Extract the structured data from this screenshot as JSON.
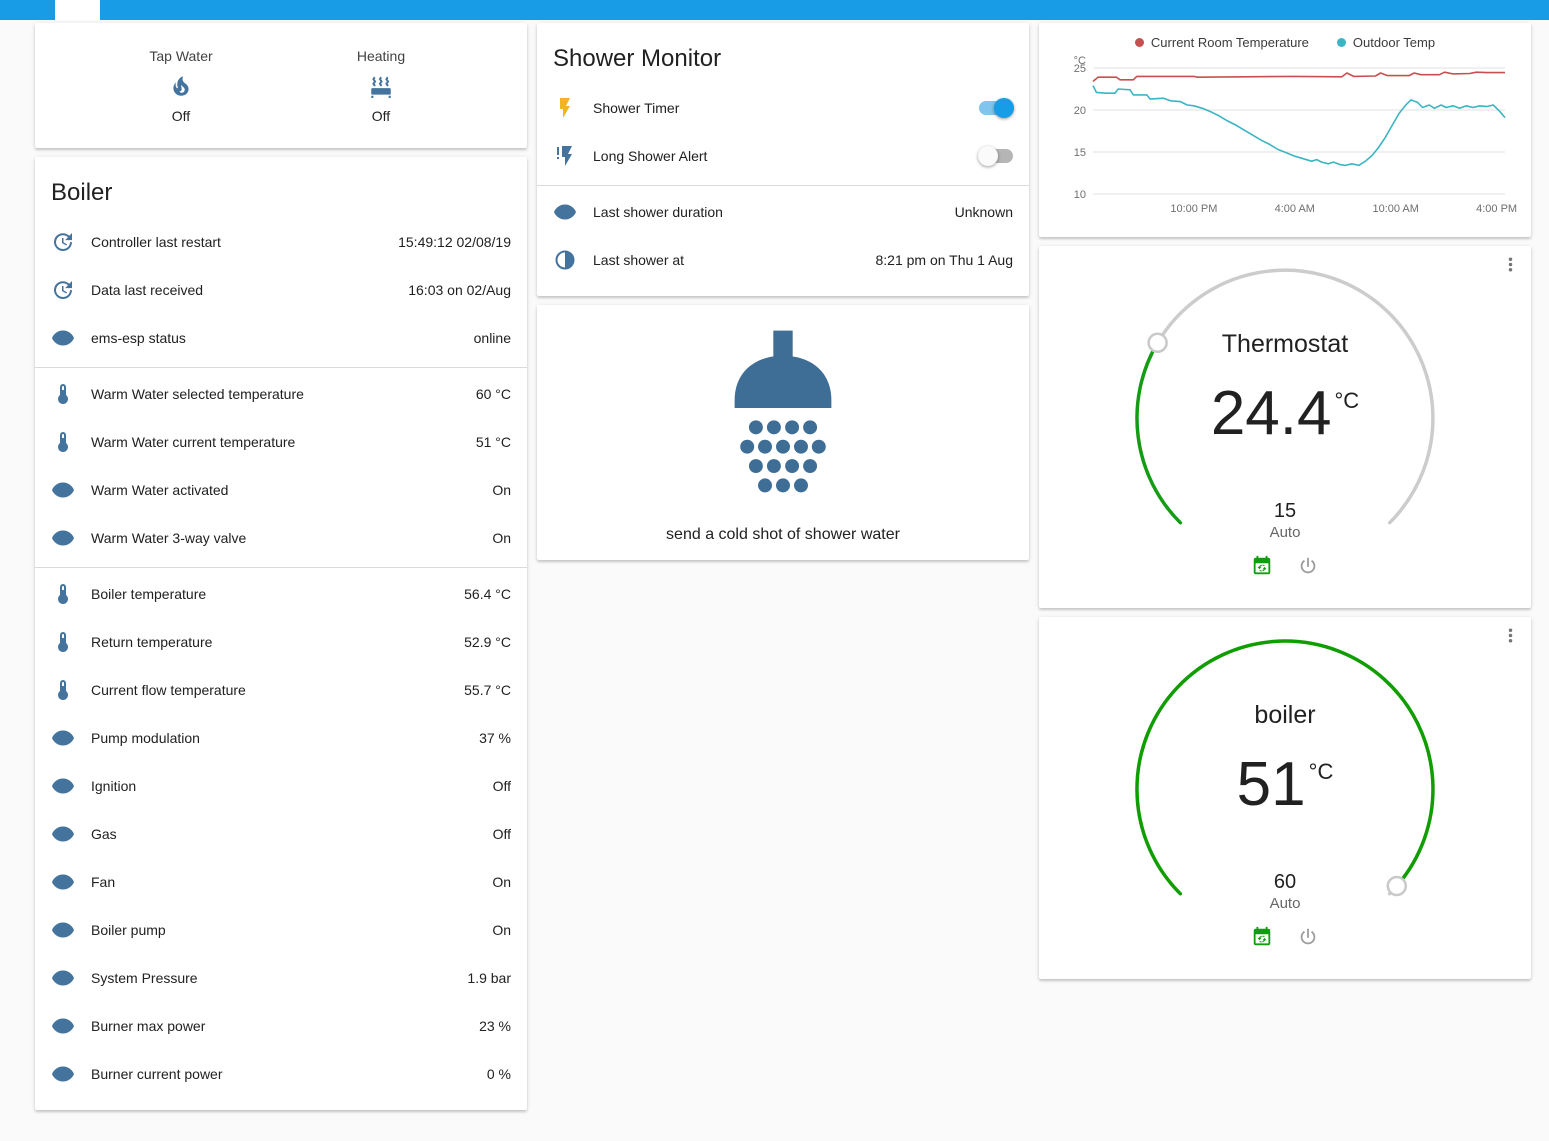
{
  "header": {
    "color": "#189ce6"
  },
  "glance_card": {
    "items": [
      {
        "name": "Tap Water",
        "icon": "fire-icon",
        "state": "Off"
      },
      {
        "name": "Heating",
        "icon": "radiator-icon",
        "state": "Off"
      }
    ]
  },
  "boiler_card": {
    "title": "Boiler",
    "rows": [
      {
        "icon": "clock-restart-icon",
        "name": "Controller last restart",
        "value": "15:49:12 02/08/19"
      },
      {
        "icon": "clock-restart-icon",
        "name": "Data last received",
        "value": "16:03 on 02/Aug"
      },
      {
        "icon": "eye-icon",
        "name": "ems-esp status",
        "value": "online"
      },
      {
        "icon": "thermometer-icon",
        "name": "Warm Water selected temperature",
        "value": "60 °C",
        "divider": true
      },
      {
        "icon": "thermometer-icon",
        "name": "Warm Water current temperature",
        "value": "51 °C"
      },
      {
        "icon": "eye-icon",
        "name": "Warm Water activated",
        "value": "On"
      },
      {
        "icon": "eye-icon",
        "name": "Warm Water 3-way valve",
        "value": "On"
      },
      {
        "icon": "thermometer-icon",
        "name": "Boiler temperature",
        "value": "56.4 °C",
        "divider": true
      },
      {
        "icon": "thermometer-icon",
        "name": "Return temperature",
        "value": "52.9 °C"
      },
      {
        "icon": "thermometer-icon",
        "name": "Current flow temperature",
        "value": "55.7 °C"
      },
      {
        "icon": "eye-icon",
        "name": "Pump modulation",
        "value": "37 %"
      },
      {
        "icon": "eye-icon",
        "name": "Ignition",
        "value": "Off"
      },
      {
        "icon": "eye-icon",
        "name": "Gas",
        "value": "Off"
      },
      {
        "icon": "eye-icon",
        "name": "Fan",
        "value": "On"
      },
      {
        "icon": "eye-icon",
        "name": "Boiler pump",
        "value": "On"
      },
      {
        "icon": "eye-icon",
        "name": "System Pressure",
        "value": "1.9 bar"
      },
      {
        "icon": "eye-icon",
        "name": "Burner max power",
        "value": "23 %"
      },
      {
        "icon": "eye-icon",
        "name": "Burner current power",
        "value": "0 %"
      }
    ]
  },
  "shower_card": {
    "title": "Shower Monitor",
    "rows": [
      {
        "icon": "flash-icon",
        "icon_color": "#f2b32b",
        "name": "Shower Timer",
        "toggle": true
      },
      {
        "icon": "flash-alert-icon",
        "name": "Long Shower Alert",
        "toggle": false
      },
      {
        "icon": "eye-icon",
        "name": "Last shower duration",
        "value": "Unknown",
        "divider": true
      },
      {
        "icon": "moon-icon",
        "name": "Last shower at",
        "value": "8:21 pm on Thu 1 Aug"
      }
    ]
  },
  "picture_card": {
    "caption": "send a cold shot of shower water"
  },
  "chart_data": {
    "type": "line",
    "unit": "°C",
    "ylim": [
      10,
      25
    ],
    "yticks": [
      25,
      20,
      15,
      10
    ],
    "xlim": [
      0,
      24.5
    ],
    "xticks": [
      {
        "x": 6,
        "label": "10:00 PM"
      },
      {
        "x": 12,
        "label": "4:00 AM"
      },
      {
        "x": 18,
        "label": "10:00 AM"
      },
      {
        "x": 24,
        "label": "4:00 PM"
      }
    ],
    "legend_position": "top",
    "grid": true,
    "series": [
      {
        "name": "Current Room Temperature",
        "color": "#c65050",
        "points": [
          [
            0,
            23.4
          ],
          [
            0.3,
            23.9
          ],
          [
            1.4,
            23.9
          ],
          [
            1.6,
            23.6
          ],
          [
            2.4,
            23.6
          ],
          [
            2.6,
            24.0
          ],
          [
            6,
            24.0
          ],
          [
            6.2,
            23.9
          ],
          [
            9,
            23.95
          ],
          [
            12,
            24.0
          ],
          [
            14.8,
            23.95
          ],
          [
            15.1,
            24.4
          ],
          [
            15.5,
            24.0
          ],
          [
            16.8,
            24.05
          ],
          [
            17.1,
            24.4
          ],
          [
            17.5,
            24.1
          ],
          [
            18.8,
            24.1
          ],
          [
            19.1,
            24.4
          ],
          [
            19.5,
            24.2
          ],
          [
            20.6,
            24.2
          ],
          [
            20.9,
            24.5
          ],
          [
            21.4,
            24.3
          ],
          [
            22.4,
            24.35
          ],
          [
            22.8,
            24.5
          ],
          [
            23.4,
            24.45
          ],
          [
            24.5,
            24.45
          ]
        ]
      },
      {
        "name": "Outdoor Temp",
        "color": "#3bb5c4",
        "points": [
          [
            0,
            22.9
          ],
          [
            0.2,
            22.1
          ],
          [
            0.8,
            22.0
          ],
          [
            1.3,
            22.0
          ],
          [
            1.5,
            22.5
          ],
          [
            2.2,
            22.4
          ],
          [
            2.4,
            21.8
          ],
          [
            3.2,
            21.8
          ],
          [
            3.4,
            21.3
          ],
          [
            4.2,
            21.4
          ],
          [
            4.6,
            21.1
          ],
          [
            5.2,
            21.0
          ],
          [
            5.6,
            20.6
          ],
          [
            6.0,
            20.5
          ],
          [
            6.5,
            20.2
          ],
          [
            7.0,
            19.8
          ],
          [
            7.5,
            19.3
          ],
          [
            8.0,
            18.7
          ],
          [
            8.5,
            18.2
          ],
          [
            9.0,
            17.6
          ],
          [
            9.5,
            17.0
          ],
          [
            10.0,
            16.4
          ],
          [
            10.5,
            15.9
          ],
          [
            11.0,
            15.3
          ],
          [
            11.5,
            14.9
          ],
          [
            12.0,
            14.5
          ],
          [
            12.5,
            14.2
          ],
          [
            13.0,
            13.9
          ],
          [
            13.3,
            14.1
          ],
          [
            13.6,
            13.8
          ],
          [
            14.0,
            13.6
          ],
          [
            14.3,
            13.8
          ],
          [
            14.7,
            13.5
          ],
          [
            15.0,
            13.4
          ],
          [
            15.4,
            13.6
          ],
          [
            15.8,
            13.4
          ],
          [
            16.2,
            13.9
          ],
          [
            16.6,
            14.6
          ],
          [
            17.0,
            15.6
          ],
          [
            17.4,
            16.8
          ],
          [
            17.8,
            18.2
          ],
          [
            18.2,
            19.6
          ],
          [
            18.6,
            20.6
          ],
          [
            18.9,
            21.2
          ],
          [
            19.3,
            20.9
          ],
          [
            19.6,
            20.3
          ],
          [
            20.0,
            20.6
          ],
          [
            20.3,
            20.2
          ],
          [
            20.7,
            20.6
          ],
          [
            21.0,
            20.3
          ],
          [
            21.4,
            20.5
          ],
          [
            21.8,
            20.2
          ],
          [
            22.2,
            20.5
          ],
          [
            22.6,
            20.3
          ],
          [
            23.0,
            20.5
          ],
          [
            23.4,
            20.4
          ],
          [
            23.8,
            20.6
          ],
          [
            24.0,
            20.2
          ],
          [
            24.2,
            19.8
          ],
          [
            24.5,
            19.1
          ]
        ]
      }
    ]
  },
  "thermostat_card": {
    "title": "Thermostat",
    "current": "24.4",
    "unit": "°C",
    "target": "15",
    "mode": "Auto",
    "dial": {
      "fraction": 0.28,
      "color": "#149c14",
      "track": "#cccccc"
    }
  },
  "boiler_dial_card": {
    "title": "boiler",
    "current": "51",
    "unit": "°C",
    "target": "60",
    "mode": "Auto",
    "dial": {
      "fraction": 0.985,
      "color": "#0f9d00",
      "track": "#cccccc"
    }
  }
}
